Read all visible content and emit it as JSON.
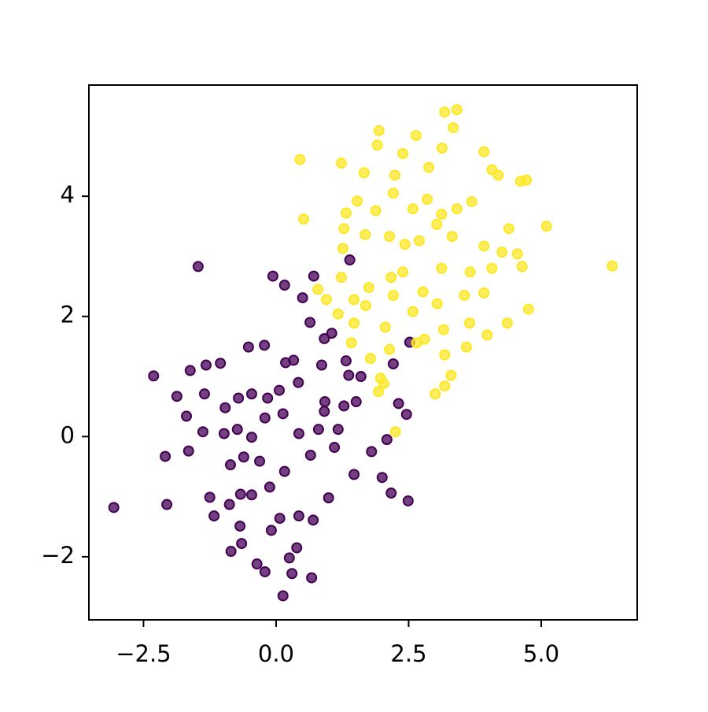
{
  "chart_data": {
    "type": "scatter",
    "xlim": [
      -3.53,
      6.81
    ],
    "ylim": [
      -3.05,
      5.85
    ],
    "xticks": [
      {
        "value": -2.5,
        "label": "−2.5"
      },
      {
        "value": 0,
        "label": "0.0"
      },
      {
        "value": 2.5,
        "label": "2.5"
      },
      {
        "value": 5,
        "label": "5.0"
      }
    ],
    "yticks": [
      {
        "value": -2,
        "label": "−2"
      },
      0,
      2,
      4
    ],
    "grid": false,
    "series": [
      {
        "color": "#440154",
        "x": [
          -1.47,
          -0.06,
          0.16,
          0.71,
          0.5,
          0.64,
          0.91,
          1.05,
          -2.31,
          -1.62,
          -1.32,
          -1.05,
          -0.52,
          -0.22,
          0.18,
          0.33,
          0.86,
          1.32,
          1.37,
          1.6,
          -1.87,
          -1.35,
          -1.69,
          -0.96,
          -0.71,
          -0.46,
          -0.16,
          0.06,
          0.42,
          0.92,
          0.91,
          1.28,
          1.51,
          -1.38,
          -0.98,
          -0.73,
          -0.46,
          -0.21,
          0.13,
          0.43,
          0.8,
          1.17,
          2.09,
          -2.09,
          -1.65,
          -0.86,
          -0.61,
          -0.31,
          0.16,
          0.65,
          1.1,
          1.8,
          1.47,
          2.0,
          -3.06,
          -2.06,
          -1.25,
          -1.17,
          -0.88,
          -0.67,
          -0.46,
          -0.12,
          0.07,
          0.43,
          0.7,
          0.99,
          2.17,
          2.49,
          -0.68,
          -0.09,
          -0.85,
          -0.65,
          0.39,
          0.25,
          -0.36,
          -0.21,
          0.3,
          0.67,
          0.13,
          1.39,
          2.52,
          2.21,
          2.31,
          2.46
        ],
        "values": [
          2.83,
          2.67,
          2.52,
          2.67,
          2.31,
          1.9,
          1.63,
          1.72,
          1.01,
          1.1,
          1.19,
          1.22,
          1.49,
          1.52,
          1.23,
          1.27,
          1.19,
          1.26,
          1.02,
          1.0,
          0.67,
          0.71,
          0.34,
          0.48,
          0.64,
          0.71,
          0.64,
          0.77,
          0.9,
          0.58,
          0.42,
          0.51,
          0.58,
          0.08,
          0.05,
          0.12,
          -0.01,
          0.31,
          0.38,
          0.05,
          0.12,
          0.12,
          -0.05,
          -0.33,
          -0.24,
          -0.47,
          -0.34,
          -0.41,
          -0.58,
          -0.31,
          -0.18,
          -0.25,
          -0.63,
          -0.68,
          -1.18,
          -1.13,
          -1.01,
          -1.32,
          -1.13,
          -0.96,
          -0.97,
          -0.84,
          -1.36,
          -1.32,
          -1.39,
          -1.02,
          -0.94,
          -1.07,
          -1.49,
          -1.56,
          -1.91,
          -1.78,
          -1.85,
          -2.02,
          -2.12,
          -2.25,
          -2.28,
          -2.35,
          -2.65,
          2.94,
          1.57,
          1.21,
          0.55,
          0.37
        ]
      },
      {
        "color": "#fde725",
        "x": [
          0.45,
          0.52,
          1.23,
          1.94,
          1.91,
          2.64,
          3.18,
          3.41,
          3.34,
          3.13,
          2.88,
          2.39,
          2.24,
          1.66,
          3.92,
          4.07,
          4.19,
          4.61,
          4.72,
          5.1,
          6.34,
          4.39,
          1.53,
          1.32,
          1.28,
          1.68,
          1.88,
          2.21,
          2.58,
          2.85,
          3.12,
          3.41,
          3.69,
          2.14,
          2.43,
          2.7,
          3.03,
          3.32,
          3.92,
          4.26,
          4.55,
          1.26,
          1.23,
          0.79,
          0.95,
          1.47,
          1.75,
          2.17,
          2.39,
          2.77,
          3.12,
          3.66,
          4.07,
          4.64,
          1.17,
          1.69,
          2.21,
          2.58,
          3.04,
          3.55,
          3.92,
          4.76,
          1.47,
          2.06,
          2.65,
          3.16,
          3.65,
          3.98,
          4.36,
          1.42,
          2.14,
          2.8,
          3.18,
          3.59,
          1.78,
          1.97,
          2.03,
          1.93,
          3.0,
          3.18,
          3.3,
          2.25
        ],
        "values": [
          4.61,
          3.62,
          4.55,
          5.09,
          4.85,
          5.01,
          5.4,
          5.44,
          5.14,
          4.8,
          4.48,
          4.71,
          4.35,
          4.39,
          4.74,
          4.44,
          4.35,
          4.25,
          4.27,
          3.5,
          2.84,
          3.46,
          3.92,
          3.72,
          3.46,
          3.36,
          3.76,
          4.05,
          3.79,
          3.95,
          3.7,
          3.79,
          3.91,
          3.33,
          3.2,
          3.26,
          3.53,
          3.33,
          3.17,
          3.07,
          3.04,
          3.13,
          2.65,
          2.45,
          2.28,
          2.28,
          2.48,
          2.65,
          2.74,
          2.41,
          2.8,
          2.74,
          2.8,
          2.83,
          2.04,
          2.18,
          2.35,
          2.08,
          2.21,
          2.35,
          2.39,
          2.12,
          1.89,
          1.82,
          1.56,
          1.78,
          1.89,
          1.69,
          1.89,
          1.56,
          1.45,
          1.62,
          1.36,
          1.49,
          1.3,
          0.97,
          0.88,
          0.75,
          0.71,
          0.84,
          1.02,
          0.08
        ]
      }
    ]
  }
}
